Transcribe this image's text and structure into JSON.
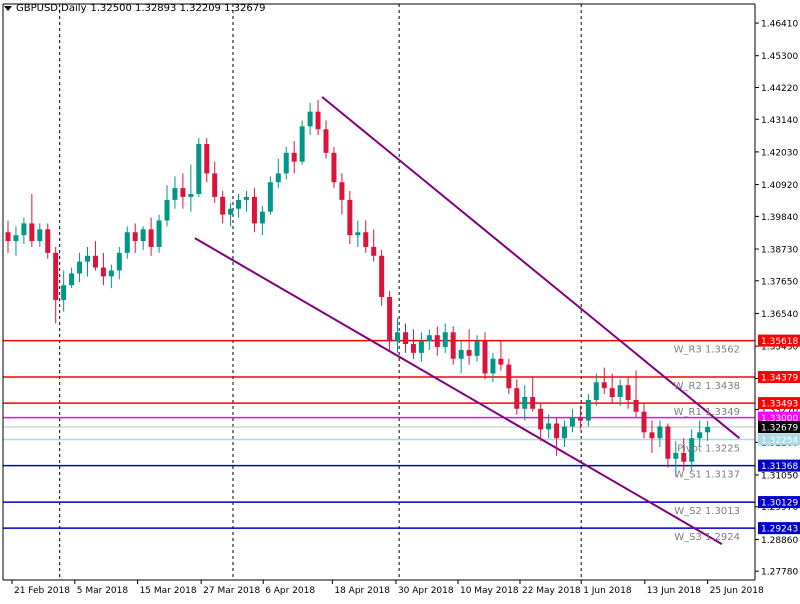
{
  "header": {
    "symbol_label": "GBPUSD,Daily",
    "ohlc_label": "1.32500 1.32893 1.32209 1.32679",
    "menu_icon": "triangle-down-icon"
  },
  "chart_data": {
    "type": "candlestick",
    "ylim": [
      1.2765,
      1.4665
    ],
    "yticks": [
      "1.46410",
      "1.45300",
      "1.44220",
      "1.43140",
      "1.42030",
      "1.40920",
      "1.39840",
      "1.38730",
      "1.37650",
      "1.36540",
      "1.35430",
      "1.34330",
      "1.33270",
      "1.32160",
      "1.31050",
      "1.29970",
      "1.28860",
      "1.27780"
    ],
    "xticks": [
      {
        "label": "21 Feb 2018",
        "x": 0.5
      },
      {
        "label": "5 Mar 2018",
        "x": 8.4
      },
      {
        "label": "15 Mar 2018",
        "x": 16.3
      },
      {
        "label": "27 Mar 2018",
        "x": 24.3
      },
      {
        "label": "6 Apr 2018",
        "x": 32.1
      },
      {
        "label": "18 Apr 2018",
        "x": 40.8
      },
      {
        "label": "30 Apr 2018",
        "x": 48.8
      },
      {
        "label": "10 May 2018",
        "x": 56.6
      },
      {
        "label": "22 May 2018",
        "x": 64.4
      },
      {
        "label": "1 Jun 2018",
        "x": 72.1
      },
      {
        "label": "13 Jun 2018",
        "x": 80.1
      },
      {
        "label": "25 Jun 2018",
        "x": 88.0
      }
    ],
    "period_separators": [
      6.5,
      28.3,
      49.2,
      72.1
    ],
    "colors": {
      "bull": "#009688",
      "bear": "#dc143c",
      "grid": "#000000",
      "channel": "#800080"
    },
    "candles": [
      [
        1.393,
        1.397,
        1.386,
        1.39
      ],
      [
        1.39,
        1.395,
        1.385,
        1.392
      ],
      [
        1.392,
        1.398,
        1.389,
        1.396
      ],
      [
        1.396,
        1.406,
        1.388,
        1.39
      ],
      [
        1.39,
        1.396,
        1.388,
        1.394
      ],
      [
        1.394,
        1.396,
        1.384,
        1.386
      ],
      [
        1.386,
        1.388,
        1.362,
        1.37
      ],
      [
        1.37,
        1.38,
        1.366,
        1.375
      ],
      [
        1.375,
        1.381,
        1.374,
        1.379
      ],
      [
        1.379,
        1.386,
        1.376,
        1.383
      ],
      [
        1.383,
        1.388,
        1.378,
        1.385
      ],
      [
        1.385,
        1.39,
        1.38,
        1.381
      ],
      [
        1.381,
        1.386,
        1.375,
        1.378
      ],
      [
        1.378,
        1.382,
        1.374,
        1.38
      ],
      [
        1.38,
        1.388,
        1.377,
        1.386
      ],
      [
        1.386,
        1.395,
        1.384,
        1.393
      ],
      [
        1.393,
        1.396,
        1.386,
        1.39
      ],
      [
        1.39,
        1.395,
        1.387,
        1.394
      ],
      [
        1.394,
        1.398,
        1.385,
        1.388
      ],
      [
        1.388,
        1.399,
        1.386,
        1.397
      ],
      [
        1.397,
        1.409,
        1.395,
        1.404
      ],
      [
        1.404,
        1.412,
        1.401,
        1.408
      ],
      [
        1.408,
        1.413,
        1.401,
        1.405
      ],
      [
        1.405,
        1.416,
        1.4,
        1.406
      ],
      [
        1.406,
        1.425,
        1.405,
        1.423
      ],
      [
        1.423,
        1.425,
        1.41,
        1.413
      ],
      [
        1.413,
        1.417,
        1.403,
        1.405
      ],
      [
        1.405,
        1.407,
        1.396,
        1.399
      ],
      [
        1.399,
        1.403,
        1.395,
        1.401
      ],
      [
        1.401,
        1.406,
        1.398,
        1.404
      ],
      [
        1.404,
        1.407,
        1.4,
        1.405
      ],
      [
        1.405,
        1.408,
        1.393,
        1.396
      ],
      [
        1.396,
        1.402,
        1.392,
        1.4
      ],
      [
        1.4,
        1.412,
        1.399,
        1.41
      ],
      [
        1.41,
        1.418,
        1.408,
        1.413
      ],
      [
        1.413,
        1.422,
        1.411,
        1.42
      ],
      [
        1.42,
        1.424,
        1.413,
        1.417
      ],
      [
        1.417,
        1.431,
        1.416,
        1.429
      ],
      [
        1.429,
        1.437,
        1.426,
        1.434
      ],
      [
        1.434,
        1.438,
        1.426,
        1.428
      ],
      [
        1.428,
        1.431,
        1.418,
        1.42
      ],
      [
        1.42,
        1.422,
        1.408,
        1.41
      ],
      [
        1.41,
        1.413,
        1.399,
        1.404
      ],
      [
        1.404,
        1.407,
        1.389,
        1.392
      ],
      [
        1.392,
        1.397,
        1.388,
        1.393
      ],
      [
        1.393,
        1.397,
        1.386,
        1.388
      ],
      [
        1.388,
        1.394,
        1.383,
        1.385
      ],
      [
        1.385,
        1.387,
        1.368,
        1.371
      ],
      [
        1.371,
        1.373,
        1.353,
        1.356
      ],
      [
        1.356,
        1.364,
        1.352,
        1.359
      ],
      [
        1.359,
        1.362,
        1.352,
        1.355
      ],
      [
        1.355,
        1.36,
        1.35,
        1.352
      ],
      [
        1.352,
        1.359,
        1.349,
        1.356
      ],
      [
        1.356,
        1.36,
        1.353,
        1.358
      ],
      [
        1.358,
        1.361,
        1.351,
        1.354
      ],
      [
        1.354,
        1.362,
        1.352,
        1.359
      ],
      [
        1.359,
        1.361,
        1.348,
        1.35
      ],
      [
        1.35,
        1.356,
        1.345,
        1.353
      ],
      [
        1.353,
        1.36,
        1.348,
        1.351
      ],
      [
        1.351,
        1.358,
        1.349,
        1.356
      ],
      [
        1.356,
        1.359,
        1.343,
        1.345
      ],
      [
        1.345,
        1.352,
        1.342,
        1.35
      ],
      [
        1.35,
        1.356,
        1.346,
        1.348
      ],
      [
        1.348,
        1.35,
        1.338,
        1.34
      ],
      [
        1.34,
        1.343,
        1.331,
        1.333
      ],
      [
        1.333,
        1.341,
        1.329,
        1.337
      ],
      [
        1.337,
        1.344,
        1.332,
        1.333
      ],
      [
        1.333,
        1.335,
        1.322,
        1.326
      ],
      [
        1.326,
        1.331,
        1.323,
        1.328
      ],
      [
        1.328,
        1.33,
        1.317,
        1.323
      ],
      [
        1.323,
        1.329,
        1.32,
        1.327
      ],
      [
        1.327,
        1.333,
        1.325,
        1.33
      ],
      [
        1.33,
        1.334,
        1.326,
        1.329
      ],
      [
        1.329,
        1.338,
        1.327,
        1.336
      ],
      [
        1.336,
        1.345,
        1.334,
        1.342
      ],
      [
        1.342,
        1.347,
        1.338,
        1.34
      ],
      [
        1.34,
        1.345,
        1.335,
        1.337
      ],
      [
        1.337,
        1.343,
        1.334,
        1.341
      ],
      [
        1.341,
        1.344,
        1.333,
        1.336
      ],
      [
        1.336,
        1.346,
        1.33,
        1.332
      ],
      [
        1.332,
        1.335,
        1.323,
        1.325
      ],
      [
        1.325,
        1.329,
        1.318,
        1.323
      ],
      [
        1.323,
        1.329,
        1.32,
        1.327
      ],
      [
        1.327,
        1.328,
        1.313,
        1.316
      ],
      [
        1.316,
        1.322,
        1.31,
        1.318
      ],
      [
        1.318,
        1.323,
        1.312,
        1.315
      ],
      [
        1.315,
        1.326,
        1.312,
        1.323
      ],
      [
        1.323,
        1.329,
        1.32,
        1.325
      ],
      [
        1.325,
        1.3289,
        1.3221,
        1.3268
      ]
    ],
    "levels": [
      {
        "name": "W_R3",
        "value": 1.35618,
        "tag": "1.35618",
        "text": "W_R3 1.3562",
        "line": "#ff0000",
        "tag_bg": "#ff0000",
        "tag_fg": "#ffffff"
      },
      {
        "name": "W_R2",
        "value": 1.34379,
        "tag": "1.34379",
        "text": "W_R2 1.3438",
        "line": "#ff0000",
        "tag_bg": "#ff0000",
        "tag_fg": "#ffffff"
      },
      {
        "name": "W_R1",
        "value": 1.33493,
        "tag": "1.33493",
        "text": "W_R1 1.3349",
        "line": "#ff0000",
        "tag_bg": "#ff0000",
        "tag_fg": "#ffffff"
      },
      {
        "name": "open",
        "value": 1.33,
        "tag": "1.33000",
        "text": "",
        "line": "#ff00ff",
        "tag_bg": "#ff00ff",
        "tag_fg": "#ffffff"
      },
      {
        "name": "last",
        "value": 1.32679,
        "tag": "1.32679",
        "text": "",
        "line": "#c0c0c0",
        "tag_bg": "#000000",
        "tag_fg": "#ffffff"
      },
      {
        "name": "W_Pivot",
        "value": 1.32254,
        "tag": "1.32254",
        "text": "Pivot 1.3225",
        "line": "#add8e6",
        "tag_bg": "#add8e6",
        "tag_fg": "#ffffff"
      },
      {
        "name": "W_S1",
        "value": 1.31368,
        "tag": "1.31368",
        "text": "W_S1 1.3137",
        "line": "#0000c8",
        "tag_bg": "#0000c8",
        "tag_fg": "#ffffff"
      },
      {
        "name": "W_S2",
        "value": 1.30129,
        "tag": "1.30129",
        "text": "W_S2 1.3013",
        "line": "#0000c8",
        "tag_bg": "#0000c8",
        "tag_fg": "#ffffff"
      },
      {
        "name": "W_S3",
        "value": 1.29243,
        "tag": "1.29243",
        "text": "W_S3 1.2924",
        "line": "#0000c8",
        "tag_bg": "#0000c8",
        "tag_fg": "#ffffff"
      }
    ],
    "channel_lines": [
      {
        "x1": 39.5,
        "y1": 1.439,
        "x2": 92.0,
        "y2": 1.323
      },
      {
        "x1": 23.5,
        "y1": 1.391,
        "x2": 89.8,
        "y2": 1.287
      }
    ]
  }
}
